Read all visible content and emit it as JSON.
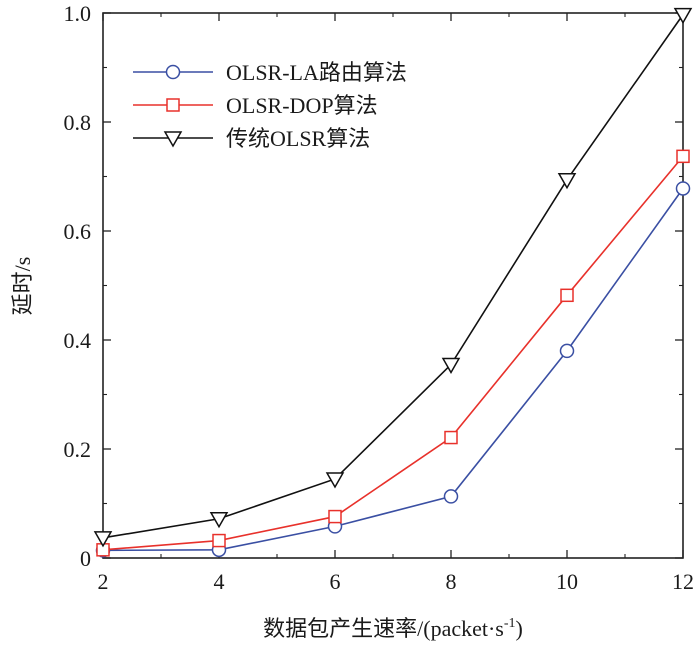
{
  "chart_data": {
    "type": "line",
    "title": "",
    "xlabel": "数据包产生速率/(packet·s",
    "xlabel_sup": "-1",
    "xlabel_close": ")",
    "ylabel": "延时/s",
    "xlim": [
      2,
      12
    ],
    "ylim": [
      0,
      1.0
    ],
    "x": [
      2,
      4,
      6,
      8,
      10,
      12
    ],
    "x_ticks": [
      2,
      4,
      6,
      8,
      10,
      12
    ],
    "x_tick_labels": [
      "2",
      "4",
      "6",
      "8",
      "10",
      "12"
    ],
    "y_ticks": [
      0,
      0.2,
      0.4,
      0.6,
      0.8,
      1.0
    ],
    "y_tick_labels": [
      "0",
      "0.2",
      "0.4",
      "0.6",
      "0.8",
      "1.0"
    ],
    "grid": false,
    "legend_position": "top-left",
    "series": [
      {
        "name": "OLSR-LA路由算法",
        "marker": "circle",
        "color": "#3a4fa3",
        "values": [
          0.014,
          0.015,
          0.058,
          0.113,
          0.38,
          0.678
        ]
      },
      {
        "name": "OLSR-DOP算法",
        "marker": "square",
        "color": "#e8312b",
        "values": [
          0.015,
          0.032,
          0.076,
          0.221,
          0.482,
          0.737
        ]
      },
      {
        "name": "传统OLSR算法",
        "marker": "triangle-down",
        "color": "#111111",
        "values": [
          0.037,
          0.072,
          0.145,
          0.355,
          0.694,
          0.997
        ]
      }
    ]
  }
}
